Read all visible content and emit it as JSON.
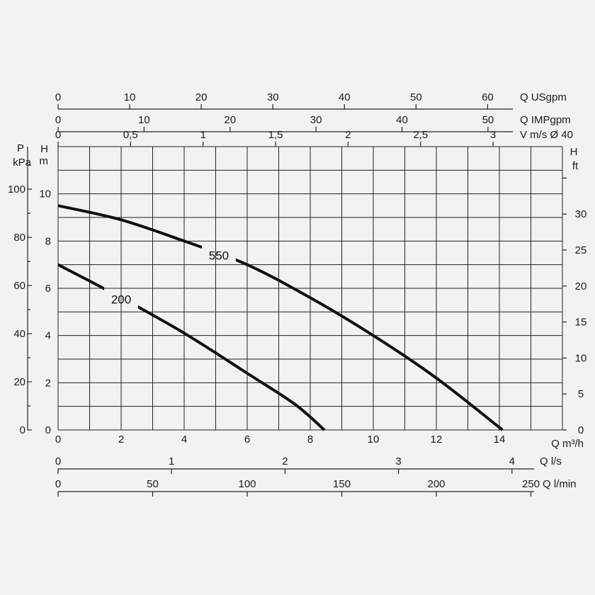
{
  "chart_data": {
    "type": "line",
    "x": {
      "unit": "Q m³/h",
      "range": [
        0,
        16
      ],
      "ticks": [
        0,
        2,
        4,
        6,
        8,
        10,
        12,
        14
      ]
    },
    "y": {
      "unit_top": "H",
      "unit_bottom": "m",
      "range": [
        0,
        12
      ],
      "ticks": [
        0,
        2,
        4,
        6,
        8,
        10
      ]
    },
    "series": [
      {
        "name": "550",
        "x": [
          0,
          2,
          4,
          6,
          8,
          10,
          12,
          14.1
        ],
        "y": [
          9.5,
          8.9,
          8.0,
          7.0,
          5.6,
          4.0,
          2.2,
          0
        ]
      },
      {
        "name": "200",
        "x": [
          0,
          2,
          4,
          6,
          7.5,
          8.45
        ],
        "y": [
          7.0,
          5.6,
          4.1,
          2.4,
          1.1,
          0
        ]
      }
    ],
    "grid": true,
    "secondary_axes": {
      "top": [
        {
          "unit": "Q USgpm",
          "ticks": [
            0,
            10,
            20,
            30,
            40,
            50,
            60
          ],
          "m3h_per_unit": 0.22712
        },
        {
          "unit": "Q IMPgpm",
          "ticks": [
            0,
            10,
            20,
            30,
            40,
            50
          ],
          "m3h_per_unit": 0.27277
        },
        {
          "unit": "V m/s Ø 40",
          "ticks": [
            "0",
            "0,5",
            "1",
            "1,5",
            "2",
            "2,5",
            "3"
          ],
          "m3h_per_unit": 4.6
        }
      ],
      "bottom": [
        {
          "unit": "Q l/s",
          "ticks": [
            0,
            1,
            2,
            3,
            4
          ],
          "m3h_per_unit": 3.6
        },
        {
          "unit": "Q l/min",
          "ticks": [
            0,
            50,
            100,
            150,
            200,
            250
          ],
          "m3h_per_unit": 0.06
        }
      ],
      "left": {
        "unit_top": "P",
        "unit_bottom": "kPa",
        "ticks": [
          0,
          20,
          40,
          60,
          80,
          100
        ],
        "m_per_unit": 0.10197
      },
      "right": {
        "unit_top": "H",
        "unit_bottom": "ft",
        "ticks": [
          0,
          5,
          10,
          15,
          20,
          25,
          30
        ],
        "m_per_unit": 0.3048
      }
    }
  }
}
